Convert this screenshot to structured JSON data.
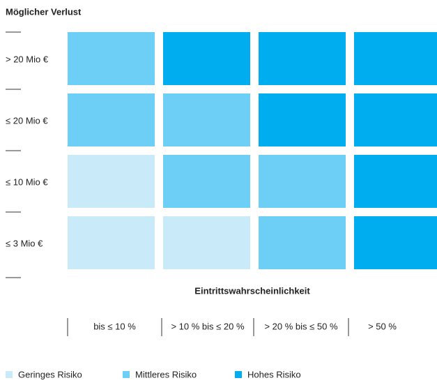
{
  "title": "Möglicher Verlust",
  "rows": [
    "> 20 Mio €",
    "≤ 20 Mio €",
    "≤ 10 Mio €",
    "≤ 3 Mio €"
  ],
  "x_label": "Eintrittswahrscheinlichkeit",
  "columns": [
    "bis ≤ 10 %",
    "> 10 % bis ≤ 20 %",
    "> 20 % bis ≤ 50 %",
    "> 50 %"
  ],
  "legend": [
    {
      "name": "Geringes Risiko",
      "color": "#c9eaf9"
    },
    {
      "name": "Mittleres Risiko",
      "color": "#6dcff6"
    },
    {
      "name": "Hohes Risiko",
      "color": "#00aeef"
    }
  ],
  "cells": [
    [
      1,
      2,
      2,
      2
    ],
    [
      1,
      1,
      2,
      2
    ],
    [
      0,
      1,
      1,
      2
    ],
    [
      0,
      0,
      1,
      2
    ]
  ]
}
